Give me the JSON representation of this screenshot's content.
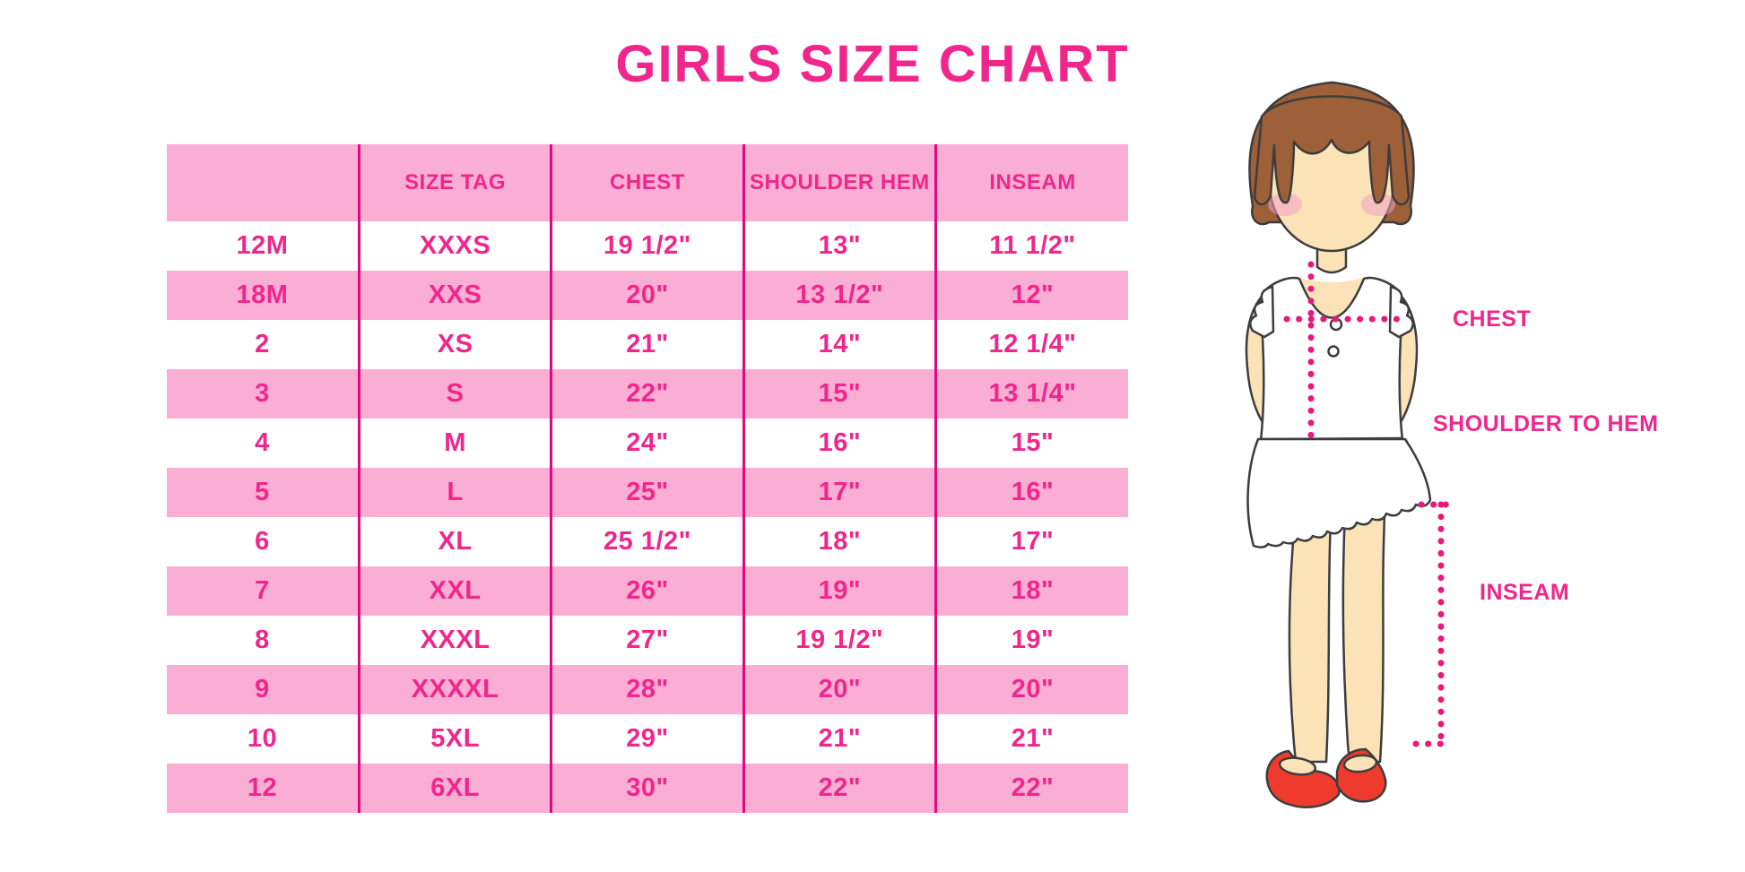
{
  "title": "GIRLS SIZE CHART",
  "colors": {
    "hot_pink": "#F0268C",
    "light_pink": "#FAAED3",
    "divider": "#E30880",
    "dotted_line": "#EC1879",
    "hair": "#9E6039",
    "skin": "#FBE2B7",
    "shoe_red": "#EF3B2D"
  },
  "chart_data": {
    "type": "table",
    "title": "GIRLS SIZE CHART",
    "columns": [
      "",
      "SIZE TAG",
      "CHEST",
      "SHOULDER HEM",
      "INSEAM"
    ],
    "rows": [
      [
        "12M",
        "XXXS",
        "19 1/2\"",
        "13\"",
        "11 1/2\""
      ],
      [
        "18M",
        "XXS",
        "20\"",
        "13 1/2\"",
        "12\""
      ],
      [
        "2",
        "XS",
        "21\"",
        "14\"",
        "12 1/4\""
      ],
      [
        "3",
        "S",
        "22\"",
        "15\"",
        "13 1/4\""
      ],
      [
        "4",
        "M",
        "24\"",
        "16\"",
        "15\""
      ],
      [
        "5",
        "L",
        "25\"",
        "17\"",
        "16\""
      ],
      [
        "6",
        "XL",
        "25 1/2\"",
        "18\"",
        "17\""
      ],
      [
        "7",
        "XXL",
        "26\"",
        "19\"",
        "18\""
      ],
      [
        "8",
        "XXXL",
        "27\"",
        "19 1/2\"",
        "19\""
      ],
      [
        "9",
        "XXXXL",
        "28\"",
        "20\"",
        "20\""
      ],
      [
        "10",
        "5XL",
        "29\"",
        "21\"",
        "21\""
      ],
      [
        "12",
        "6XL",
        "30\"",
        "22\"",
        "22\""
      ]
    ],
    "row_striping": "white / light pink alternating, header light pink",
    "legend_position": "none",
    "grid": "vertical magenta column dividers only"
  },
  "figure": {
    "labels": {
      "chest": "CHEST",
      "shoulder_to_hem": "SHOULDER TO HEM",
      "inseam": "INSEAM"
    },
    "illustration": "girl-figure"
  }
}
